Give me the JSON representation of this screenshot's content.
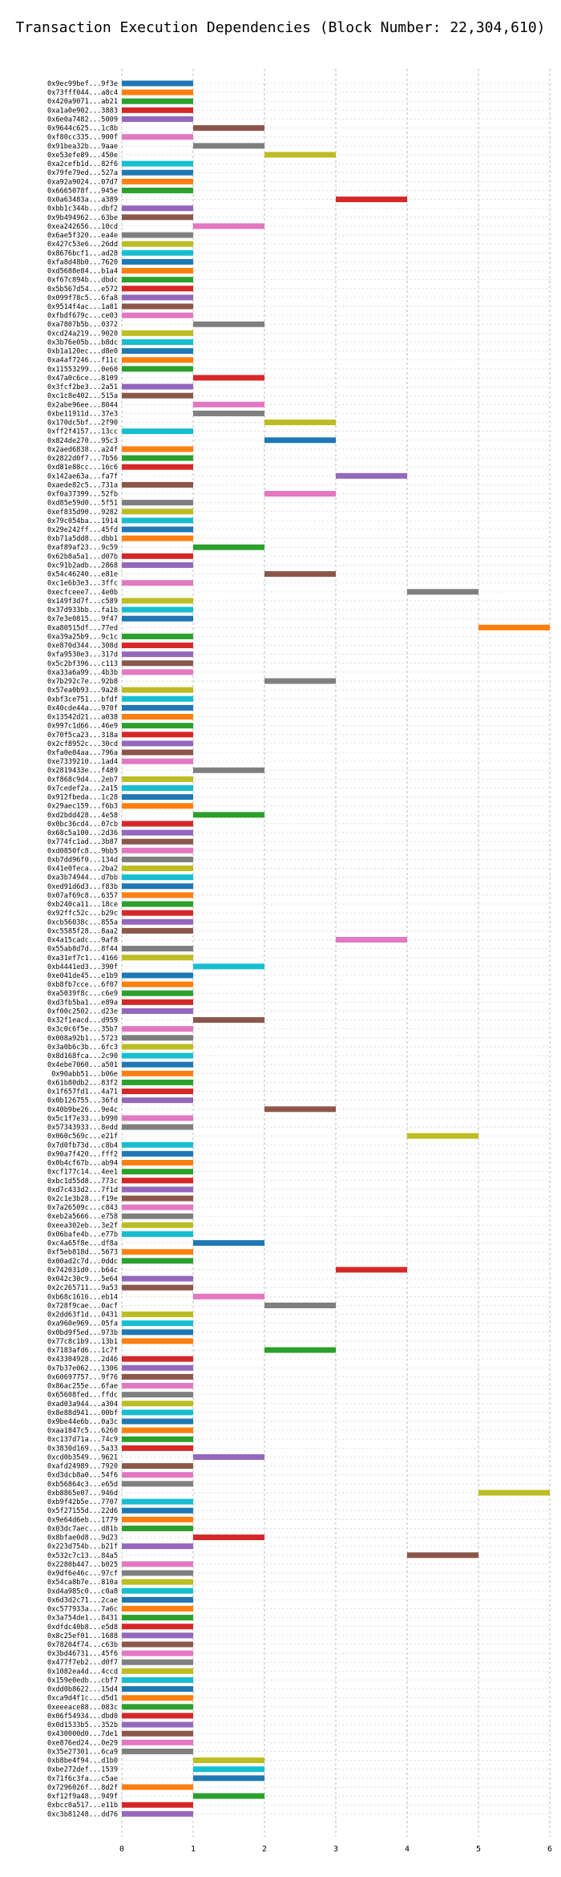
{
  "chart_data": {
    "type": "bar",
    "orientation": "horizontal",
    "title": "Transaction Execution Dependencies (Block Number: 22,304,610)",
    "xlabel": "",
    "ylabel": "",
    "xlim": [
      0,
      6
    ],
    "xticks": [
      0,
      1,
      2,
      3,
      4,
      5,
      6
    ],
    "grid": true,
    "palette": [
      "#1f77b4",
      "#ff7f0e",
      "#2ca02c",
      "#d62728",
      "#9467bd",
      "#8c564b",
      "#e377c2",
      "#7f7f7f",
      "#bcbd22",
      "#17becf"
    ],
    "transactions": [
      {
        "label": "0x9ec99bef...9f3e",
        "start": 0,
        "end": 1
      },
      {
        "label": "0x73fff044...a8c4",
        "start": 0,
        "end": 1
      },
      {
        "label": "0x420a9071...ab21",
        "start": 0,
        "end": 1
      },
      {
        "label": "0xa1a0e902...3883",
        "start": 0,
        "end": 1
      },
      {
        "label": "0x6e0a7482...5009",
        "start": 0,
        "end": 1
      },
      {
        "label": "0x9644c625...1c8b",
        "start": 1,
        "end": 2
      },
      {
        "label": "0xf80cc335...900f",
        "start": 0,
        "end": 1
      },
      {
        "label": "0x91bea32b...9aae",
        "start": 1,
        "end": 2
      },
      {
        "label": "0xe53efe89...450e",
        "start": 2,
        "end": 3
      },
      {
        "label": "0xa2cefb1d...82f6",
        "start": 0,
        "end": 1
      },
      {
        "label": "0x79fe79ed...527a",
        "start": 0,
        "end": 1
      },
      {
        "label": "0xa92a9024...07d7",
        "start": 0,
        "end": 1
      },
      {
        "label": "0x6665078f...945e",
        "start": 0,
        "end": 1
      },
      {
        "label": "0x0a63483a...a389",
        "start": 3,
        "end": 4
      },
      {
        "label": "0xbb1c344b...dbf2",
        "start": 0,
        "end": 1
      },
      {
        "label": "0x9b494962...63be",
        "start": 0,
        "end": 1
      },
      {
        "label": "0xea242656...10cd",
        "start": 1,
        "end": 2
      },
      {
        "label": "0x6ae5f320...ea4e",
        "start": 0,
        "end": 1
      },
      {
        "label": "0x427c53e6...26dd",
        "start": 0,
        "end": 1
      },
      {
        "label": "0x8676bcf1...ad28",
        "start": 0,
        "end": 1
      },
      {
        "label": "0xfa8d48b0...7620",
        "start": 0,
        "end": 1
      },
      {
        "label": "0xd5688e84...b1a4",
        "start": 0,
        "end": 1
      },
      {
        "label": "0xf67c894b...dbdc",
        "start": 0,
        "end": 1
      },
      {
        "label": "0x5b567d54...e572",
        "start": 0,
        "end": 1
      },
      {
        "label": "0x099f78c5...6fa8",
        "start": 0,
        "end": 1
      },
      {
        "label": "0x9514f4ac...1a81",
        "start": 0,
        "end": 1
      },
      {
        "label": "0xfbdf679c...ce03",
        "start": 0,
        "end": 1
      },
      {
        "label": "0xa7807b5b...0372",
        "start": 1,
        "end": 2
      },
      {
        "label": "0xcd24a219...9020",
        "start": 0,
        "end": 1
      },
      {
        "label": "0x3b76e05b...b8dc",
        "start": 0,
        "end": 1
      },
      {
        "label": "0xb1a120ec...d8e0",
        "start": 0,
        "end": 1
      },
      {
        "label": "0xa4af7246...f11c",
        "start": 0,
        "end": 1
      },
      {
        "label": "0x11553299...0e60",
        "start": 0,
        "end": 1
      },
      {
        "label": "0x47a0c6ce...8109",
        "start": 1,
        "end": 2
      },
      {
        "label": "0x3fcf2be3...2a51",
        "start": 0,
        "end": 1
      },
      {
        "label": "0xc1c8e402...515a",
        "start": 0,
        "end": 1
      },
      {
        "label": "0x2abe96ee...8044",
        "start": 1,
        "end": 2
      },
      {
        "label": "0xbe11911d...37e3",
        "start": 1,
        "end": 2
      },
      {
        "label": "0x170dc5bf...2f90",
        "start": 2,
        "end": 3
      },
      {
        "label": "0xff2f4157...13cc",
        "start": 0,
        "end": 1
      },
      {
        "label": "0x824de270...95c3",
        "start": 2,
        "end": 3
      },
      {
        "label": "0x2aed6838...a24f",
        "start": 0,
        "end": 1
      },
      {
        "label": "0x2822d0f7...7b56",
        "start": 0,
        "end": 1
      },
      {
        "label": "0xd81e88cc...16c6",
        "start": 0,
        "end": 1
      },
      {
        "label": "0x142ae63a...fa7f",
        "start": 3,
        "end": 4
      },
      {
        "label": "0xaede82c5...731a",
        "start": 0,
        "end": 1
      },
      {
        "label": "0xf0a37399...52fb",
        "start": 2,
        "end": 3
      },
      {
        "label": "0xd85e59d0...5f51",
        "start": 0,
        "end": 1
      },
      {
        "label": "0xef835d90...9282",
        "start": 0,
        "end": 1
      },
      {
        "label": "0x79c054ba...1914",
        "start": 0,
        "end": 1
      },
      {
        "label": "0x29e242ff...45fd",
        "start": 0,
        "end": 1
      },
      {
        "label": "0xb71a5dd8...dbb1",
        "start": 0,
        "end": 1
      },
      {
        "label": "0xaf89af23...9c59",
        "start": 1,
        "end": 2
      },
      {
        "label": "0x62b8a5a1...d07b",
        "start": 0,
        "end": 1
      },
      {
        "label": "0xc91b2adb...2868",
        "start": 0,
        "end": 1
      },
      {
        "label": "0x54c46240...e81e",
        "start": 2,
        "end": 3
      },
      {
        "label": "0xc1e6b3e3...3ffc",
        "start": 0,
        "end": 1
      },
      {
        "label": "0xecfceee7...4e0b",
        "start": 4,
        "end": 5
      },
      {
        "label": "0x149f3d7f...c589",
        "start": 0,
        "end": 1
      },
      {
        "label": "0x37d933bb...fa1b",
        "start": 0,
        "end": 1
      },
      {
        "label": "0x7e3e0815...9f47",
        "start": 0,
        "end": 1
      },
      {
        "label": "0xa80515df...77ed",
        "start": 5,
        "end": 6
      },
      {
        "label": "0xa39a25b9...9c1c",
        "start": 0,
        "end": 1
      },
      {
        "label": "0xe870d344...308d",
        "start": 0,
        "end": 1
      },
      {
        "label": "0xfa9530e3...317d",
        "start": 0,
        "end": 1
      },
      {
        "label": "0x5c2bf396...c113",
        "start": 0,
        "end": 1
      },
      {
        "label": "0xa33a6a99...4b3b",
        "start": 0,
        "end": 1
      },
      {
        "label": "0x7b292c7e...92b8",
        "start": 2,
        "end": 3
      },
      {
        "label": "0x57ea0b93...9a28",
        "start": 0,
        "end": 1
      },
      {
        "label": "0xbf3ce751...bfdf",
        "start": 0,
        "end": 1
      },
      {
        "label": "0x40cde44a...970f",
        "start": 0,
        "end": 1
      },
      {
        "label": "0x13542d21...a038",
        "start": 0,
        "end": 1
      },
      {
        "label": "0x997c1d66...46e9",
        "start": 0,
        "end": 1
      },
      {
        "label": "0x70f5ca23...318a",
        "start": 0,
        "end": 1
      },
      {
        "label": "0x2cf8952c...30cd",
        "start": 0,
        "end": 1
      },
      {
        "label": "0xfa0e04aa...796a",
        "start": 0,
        "end": 1
      },
      {
        "label": "0xe7339210...1ad4",
        "start": 0,
        "end": 1
      },
      {
        "label": "0x2819433e...f489",
        "start": 1,
        "end": 2
      },
      {
        "label": "0xf868c9d4...2eb7",
        "start": 0,
        "end": 1
      },
      {
        "label": "0x7cedef2a...2a15",
        "start": 0,
        "end": 1
      },
      {
        "label": "0x912fbeda...1c28",
        "start": 0,
        "end": 1
      },
      {
        "label": "0x29aec159...f6b3",
        "start": 0,
        "end": 1
      },
      {
        "label": "0xd2bdd428...4e58",
        "start": 1,
        "end": 2
      },
      {
        "label": "0x0bc36cd4...07cb",
        "start": 0,
        "end": 1
      },
      {
        "label": "0x68c5a100...2d36",
        "start": 0,
        "end": 1
      },
      {
        "label": "0x774fc1ad...3b87",
        "start": 0,
        "end": 1
      },
      {
        "label": "0xd0850fc8...9bb5",
        "start": 0,
        "end": 1
      },
      {
        "label": "0xb7dd96f0...134d",
        "start": 0,
        "end": 1
      },
      {
        "label": "0x41e0feca...2ba2",
        "start": 0,
        "end": 1
      },
      {
        "label": "0xa3b74944...d7bb",
        "start": 0,
        "end": 1
      },
      {
        "label": "0xed91d6d3...f83b",
        "start": 0,
        "end": 1
      },
      {
        "label": "0x07af69c8...6357",
        "start": 0,
        "end": 1
      },
      {
        "label": "0xb240ca11...18ce",
        "start": 0,
        "end": 1
      },
      {
        "label": "0x92ffc52c...b29c",
        "start": 0,
        "end": 1
      },
      {
        "label": "0xcb56038c...855a",
        "start": 0,
        "end": 1
      },
      {
        "label": "0xc5585f28...8aa2",
        "start": 0,
        "end": 1
      },
      {
        "label": "0x4a15cadc...9af8",
        "start": 3,
        "end": 4
      },
      {
        "label": "0x55ab8d7d...8f44",
        "start": 0,
        "end": 1
      },
      {
        "label": "0xa31ef7c1...4166",
        "start": 0,
        "end": 1
      },
      {
        "label": "0xb4441ed3...390f",
        "start": 1,
        "end": 2
      },
      {
        "label": "0xe041de45...e1b9",
        "start": 0,
        "end": 1
      },
      {
        "label": "0xb8fb7cce...6f07",
        "start": 0,
        "end": 1
      },
      {
        "label": "0xa5039f8c...c6e9",
        "start": 0,
        "end": 1
      },
      {
        "label": "0xd3fb5ba1...e89a",
        "start": 0,
        "end": 1
      },
      {
        "label": "0xf00c2502...d23e",
        "start": 0,
        "end": 1
      },
      {
        "label": "0x32f1eacd...d959",
        "start": 1,
        "end": 2
      },
      {
        "label": "0x3c0c6f5e...35b7",
        "start": 0,
        "end": 1
      },
      {
        "label": "0x008a92b1...5723",
        "start": 0,
        "end": 1
      },
      {
        "label": "0x3a0b6c3b...6fc3",
        "start": 0,
        "end": 1
      },
      {
        "label": "0x8d168fca...2c90",
        "start": 0,
        "end": 1
      },
      {
        "label": "0x4ebe7060...a501",
        "start": 0,
        "end": 1
      },
      {
        "label": "0x90abb51...b06e",
        "start": 0,
        "end": 1
      },
      {
        "label": "0x61b80db2...83f2",
        "start": 0,
        "end": 1
      },
      {
        "label": "0x1f657fd1...4a71",
        "start": 0,
        "end": 1
      },
      {
        "label": "0x0b126755...36fd",
        "start": 0,
        "end": 1
      },
      {
        "label": "0x40b9be26...9e4c",
        "start": 2,
        "end": 3
      },
      {
        "label": "0x5c1f7e33...b990",
        "start": 0,
        "end": 1
      },
      {
        "label": "0x57343933...8edd",
        "start": 0,
        "end": 1
      },
      {
        "label": "0x060c569c...e21f",
        "start": 4,
        "end": 5
      },
      {
        "label": "0x7d0fb73d...c8b4",
        "start": 0,
        "end": 1
      },
      {
        "label": "0x90a7f420...fff2",
        "start": 0,
        "end": 1
      },
      {
        "label": "0x0b4cf67b...ab94",
        "start": 0,
        "end": 1
      },
      {
        "label": "0xcf177c14...4ee1",
        "start": 0,
        "end": 1
      },
      {
        "label": "0xbc1d55d8...773c",
        "start": 0,
        "end": 1
      },
      {
        "label": "0xd7c433d2...7f1d",
        "start": 0,
        "end": 1
      },
      {
        "label": "0x2c1e3b28...f19e",
        "start": 0,
        "end": 1
      },
      {
        "label": "0x7a26509c...c843",
        "start": 0,
        "end": 1
      },
      {
        "label": "0xeb2a5666...e758",
        "start": 0,
        "end": 1
      },
      {
        "label": "0xeea302eb...3e2f",
        "start": 0,
        "end": 1
      },
      {
        "label": "0x06bafe4b...e77b",
        "start": 0,
        "end": 1
      },
      {
        "label": "0xc4a65f8e...df8a",
        "start": 1,
        "end": 2
      },
      {
        "label": "0xf5eb818d...5673",
        "start": 0,
        "end": 1
      },
      {
        "label": "0x00ad2c7d...0ddc",
        "start": 0,
        "end": 1
      },
      {
        "label": "0x742031d0...b64c",
        "start": 3,
        "end": 4
      },
      {
        "label": "0x042c30c9...5e64",
        "start": 0,
        "end": 1
      },
      {
        "label": "0x2c265711...9a53",
        "start": 0,
        "end": 1
      },
      {
        "label": "0xb68c1616...eb14",
        "start": 1,
        "end": 2
      },
      {
        "label": "0x728f9cae...0acf",
        "start": 2,
        "end": 3
      },
      {
        "label": "0x2dd63f1d...0431",
        "start": 0,
        "end": 1
      },
      {
        "label": "0xa960e969...05fa",
        "start": 0,
        "end": 1
      },
      {
        "label": "0x0bd9f5ed...973b",
        "start": 0,
        "end": 1
      },
      {
        "label": "0x77c8c1b9...13b1",
        "start": 0,
        "end": 1
      },
      {
        "label": "0x7183afd6...1c7f",
        "start": 2,
        "end": 3
      },
      {
        "label": "0x43304928...2d46",
        "start": 0,
        "end": 1
      },
      {
        "label": "0x7b37e062...1306",
        "start": 0,
        "end": 1
      },
      {
        "label": "0x60697757...9f76",
        "start": 0,
        "end": 1
      },
      {
        "label": "0x86ac255e...6fae",
        "start": 0,
        "end": 1
      },
      {
        "label": "0x65608fed...ffdc",
        "start": 0,
        "end": 1
      },
      {
        "label": "0xad03a944...a304",
        "start": 0,
        "end": 1
      },
      {
        "label": "0x8e88d941...00bf",
        "start": 0,
        "end": 1
      },
      {
        "label": "0x9be44e6b...0a3c",
        "start": 0,
        "end": 1
      },
      {
        "label": "0xaa1847c5...6260",
        "start": 0,
        "end": 1
      },
      {
        "label": "0xc137d71a...74c9",
        "start": 0,
        "end": 1
      },
      {
        "label": "0x3830d169...5a33",
        "start": 0,
        "end": 1
      },
      {
        "label": "0xcd0b3549...9621",
        "start": 1,
        "end": 2
      },
      {
        "label": "0xafd24989...7920",
        "start": 0,
        "end": 1
      },
      {
        "label": "0xd3dcb8a0...54f6",
        "start": 0,
        "end": 1
      },
      {
        "label": "0xb56864c3...e65d",
        "start": 0,
        "end": 1
      },
      {
        "label": "0xb8865e07...946d",
        "start": 5,
        "end": 6
      },
      {
        "label": "0xb9f42b5e...7707",
        "start": 0,
        "end": 1
      },
      {
        "label": "0x5f27155d...22d6",
        "start": 0,
        "end": 1
      },
      {
        "label": "0x9e64d6eb...1779",
        "start": 0,
        "end": 1
      },
      {
        "label": "0x03dc7aec...d81b",
        "start": 0,
        "end": 1
      },
      {
        "label": "0x8bfae0d8...9d23",
        "start": 1,
        "end": 2
      },
      {
        "label": "0x223d754b...b21f",
        "start": 0,
        "end": 1
      },
      {
        "label": "0x532c7c13...84a5",
        "start": 4,
        "end": 5
      },
      {
        "label": "0x2280b447...b025",
        "start": 0,
        "end": 1
      },
      {
        "label": "0x9df6e46c...97cf",
        "start": 0,
        "end": 1
      },
      {
        "label": "0x54ca8b7e...810a",
        "start": 0,
        "end": 1
      },
      {
        "label": "0xd4a985c0...c0a8",
        "start": 0,
        "end": 1
      },
      {
        "label": "0x6d3d2c71...2cae",
        "start": 0,
        "end": 1
      },
      {
        "label": "0xc577933a...7a6c",
        "start": 0,
        "end": 1
      },
      {
        "label": "0x3a754de1...8431",
        "start": 0,
        "end": 1
      },
      {
        "label": "0xdfdc40b8...e5d8",
        "start": 0,
        "end": 1
      },
      {
        "label": "0x8c25ef01...1688",
        "start": 0,
        "end": 1
      },
      {
        "label": "0x78204f74...c63b",
        "start": 0,
        "end": 1
      },
      {
        "label": "0x3bd46731...45f6",
        "start": 0,
        "end": 1
      },
      {
        "label": "0x477f7eb2...d0f7",
        "start": 0,
        "end": 1
      },
      {
        "label": "0x1082ea4d...4ccd",
        "start": 0,
        "end": 1
      },
      {
        "label": "0x159e0edb...cbf7",
        "start": 0,
        "end": 1
      },
      {
        "label": "0xdd0b8622...15d4",
        "start": 0,
        "end": 1
      },
      {
        "label": "0xca9d4f1c...d5d1",
        "start": 0,
        "end": 1
      },
      {
        "label": "0xeeeace88...083c",
        "start": 0,
        "end": 1
      },
      {
        "label": "0x06f54934...dbd0",
        "start": 0,
        "end": 1
      },
      {
        "label": "0x0d1533b5...352b",
        "start": 0,
        "end": 1
      },
      {
        "label": "0x430000d0...7de1",
        "start": 0,
        "end": 1
      },
      {
        "label": "0xe876ed24...0e29",
        "start": 0,
        "end": 1
      },
      {
        "label": "0x35e27301...6ca9",
        "start": 0,
        "end": 1
      },
      {
        "label": "0xb8be4f94...d1b0",
        "start": 1,
        "end": 2
      },
      {
        "label": "0xbe272def...1539",
        "start": 1,
        "end": 2
      },
      {
        "label": "0x71f6c3fa...c5ae",
        "start": 1,
        "end": 2
      },
      {
        "label": "0x7296026f...8d2f",
        "start": 0,
        "end": 1
      },
      {
        "label": "0xf12f9a48...949f",
        "start": 1,
        "end": 2
      },
      {
        "label": "0xbcc0a517...e11b",
        "start": 0,
        "end": 1
      },
      {
        "label": "0xc3b81248...dd76",
        "start": 0,
        "end": 1
      }
    ]
  }
}
